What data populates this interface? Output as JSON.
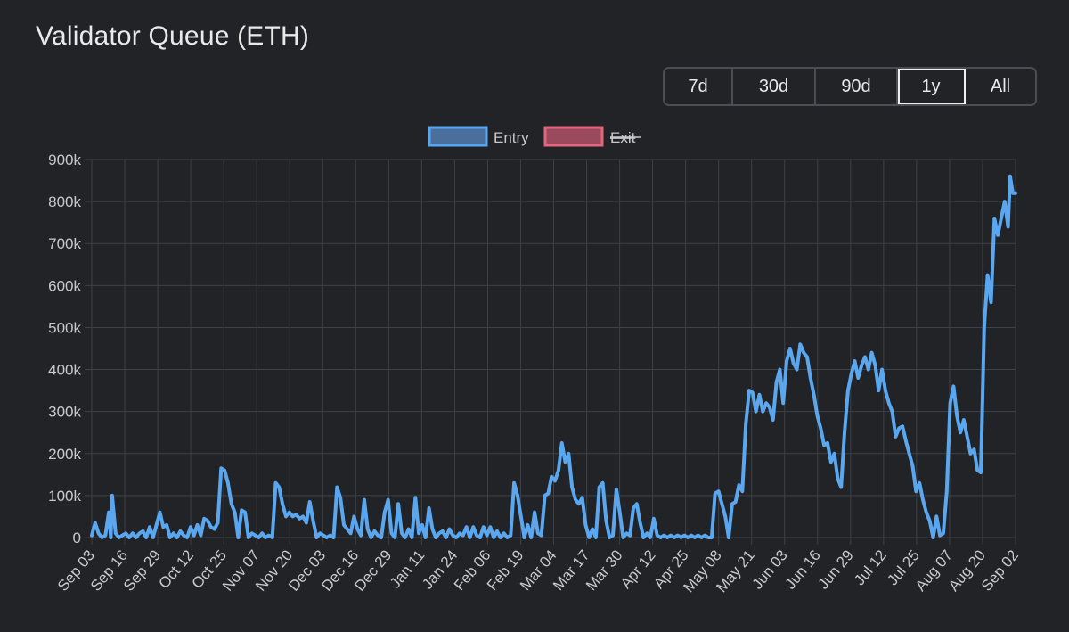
{
  "header": {
    "title": "Validator Queue (ETH)"
  },
  "range": {
    "options": [
      "7d",
      "30d",
      "90d",
      "1y",
      "All"
    ],
    "selected": "1y"
  },
  "colors": {
    "entry_line": "#5aa7ef",
    "entry_fill": "#4a6f9c",
    "exit_line": "#e2667e",
    "exit_fill": "#9a4a5c",
    "grid": "#3e4147"
  },
  "chart_data": {
    "type": "line",
    "title": "Validator Queue (ETH)",
    "xlabel": "",
    "ylabel": "",
    "ylim": [
      0,
      900000
    ],
    "y_ticks": [
      0,
      100000,
      200000,
      300000,
      400000,
      500000,
      600000,
      700000,
      800000,
      900000
    ],
    "y_tick_labels": [
      "0",
      "100k",
      "200k",
      "300k",
      "400k",
      "500k",
      "600k",
      "700k",
      "800k",
      "900k"
    ],
    "categories": [
      "Sep 03",
      "Sep 16",
      "Sep 29",
      "Oct 12",
      "Oct 25",
      "Nov 07",
      "Nov 20",
      "Dec 03",
      "Dec 16",
      "Dec 29",
      "Jan 11",
      "Jan 24",
      "Feb 06",
      "Feb 19",
      "Mar 04",
      "Mar 17",
      "Mar 30",
      "Apr 12",
      "Apr 25",
      "May 08",
      "May 21",
      "Jun 03",
      "Jun 16",
      "Jun 29",
      "Jul 12",
      "Jul 25",
      "Aug 07",
      "Aug 20",
      "Sep 02"
    ],
    "legend": [
      {
        "name": "Entry",
        "hidden": false
      },
      {
        "name": "Exit",
        "hidden": true
      }
    ],
    "series": [
      {
        "name": "Entry",
        "points": [
          [
            0,
            5000
          ],
          [
            0.5,
            35000
          ],
          [
            1,
            10000
          ],
          [
            1.5,
            0
          ],
          [
            2,
            5000
          ],
          [
            2.5,
            60000
          ],
          [
            2.8,
            0
          ],
          [
            3,
            100000
          ],
          [
            3.5,
            10000
          ],
          [
            4,
            0
          ],
          [
            4.5,
            5000
          ],
          [
            5,
            10000
          ],
          [
            5.5,
            0
          ],
          [
            6,
            10000
          ],
          [
            6.5,
            0
          ],
          [
            7,
            10000
          ],
          [
            7.5,
            15000
          ],
          [
            8,
            0
          ],
          [
            8.5,
            25000
          ],
          [
            9,
            0
          ],
          [
            10,
            60000
          ],
          [
            10.5,
            25000
          ],
          [
            11,
            30000
          ],
          [
            11.5,
            0
          ],
          [
            12,
            10000
          ],
          [
            12.5,
            0
          ],
          [
            13,
            15000
          ],
          [
            13.5,
            5000
          ],
          [
            14,
            0
          ],
          [
            14.5,
            25000
          ],
          [
            15,
            5000
          ],
          [
            15.5,
            30000
          ],
          [
            16,
            5000
          ],
          [
            16.5,
            45000
          ],
          [
            17,
            40000
          ],
          [
            17.5,
            25000
          ],
          [
            18,
            20000
          ],
          [
            18.5,
            35000
          ],
          [
            19,
            165000
          ],
          [
            19.5,
            160000
          ],
          [
            20,
            130000
          ],
          [
            20.5,
            80000
          ],
          [
            21,
            60000
          ],
          [
            21.5,
            0
          ],
          [
            22,
            65000
          ],
          [
            22.5,
            60000
          ],
          [
            23,
            0
          ],
          [
            23.5,
            10000
          ],
          [
            24,
            5000
          ],
          [
            24.5,
            0
          ],
          [
            25,
            10000
          ],
          [
            25.5,
            0
          ],
          [
            26,
            5000
          ],
          [
            26.5,
            0
          ],
          [
            27,
            130000
          ],
          [
            27.5,
            120000
          ],
          [
            28,
            80000
          ],
          [
            28.5,
            50000
          ],
          [
            29,
            60000
          ],
          [
            29.5,
            50000
          ],
          [
            30,
            55000
          ],
          [
            30.5,
            45000
          ],
          [
            31,
            50000
          ],
          [
            31.5,
            35000
          ],
          [
            32,
            85000
          ],
          [
            32.5,
            40000
          ],
          [
            33,
            0
          ],
          [
            33.5,
            10000
          ],
          [
            34,
            5000
          ],
          [
            34.5,
            0
          ],
          [
            35,
            5000
          ],
          [
            35.5,
            0
          ],
          [
            36,
            120000
          ],
          [
            36.5,
            95000
          ],
          [
            37,
            30000
          ],
          [
            37.5,
            20000
          ],
          [
            38,
            10000
          ],
          [
            38.5,
            50000
          ],
          [
            39,
            20000
          ],
          [
            39.5,
            5000
          ],
          [
            40,
            90000
          ],
          [
            40.5,
            20000
          ],
          [
            41,
            0
          ],
          [
            41.5,
            15000
          ],
          [
            42,
            5000
          ],
          [
            42.5,
            0
          ],
          [
            43,
            60000
          ],
          [
            43.5,
            90000
          ],
          [
            44,
            10000
          ],
          [
            44.5,
            0
          ],
          [
            45,
            80000
          ],
          [
            45.5,
            10000
          ],
          [
            46,
            0
          ],
          [
            46.5,
            20000
          ],
          [
            47,
            0
          ],
          [
            47.5,
            95000
          ],
          [
            48,
            10000
          ],
          [
            48.5,
            30000
          ],
          [
            49,
            0
          ],
          [
            49.5,
            70000
          ],
          [
            50,
            20000
          ],
          [
            50.5,
            0
          ],
          [
            51,
            10000
          ],
          [
            51.5,
            15000
          ],
          [
            52,
            0
          ],
          [
            52.5,
            20000
          ],
          [
            53,
            5000
          ],
          [
            53.5,
            0
          ],
          [
            54,
            10000
          ],
          [
            54.5,
            5000
          ],
          [
            55,
            25000
          ],
          [
            55.5,
            0
          ],
          [
            56,
            25000
          ],
          [
            56.5,
            5000
          ],
          [
            57,
            0
          ],
          [
            57.5,
            25000
          ],
          [
            58,
            5000
          ],
          [
            58.5,
            25000
          ],
          [
            59,
            0
          ],
          [
            59.5,
            15000
          ],
          [
            60,
            0
          ],
          [
            60.5,
            10000
          ],
          [
            61,
            0
          ],
          [
            61.5,
            5000
          ],
          [
            62,
            130000
          ],
          [
            62.5,
            100000
          ],
          [
            63,
            50000
          ],
          [
            63.5,
            0
          ],
          [
            64,
            30000
          ],
          [
            64.5,
            0
          ],
          [
            65,
            60000
          ],
          [
            65.5,
            10000
          ],
          [
            66,
            5000
          ],
          [
            66.5,
            100000
          ],
          [
            67,
            105000
          ],
          [
            67.5,
            145000
          ],
          [
            68,
            135000
          ],
          [
            68.5,
            160000
          ],
          [
            69,
            225000
          ],
          [
            69.5,
            180000
          ],
          [
            70,
            200000
          ],
          [
            70.5,
            120000
          ],
          [
            71,
            90000
          ],
          [
            71.5,
            80000
          ],
          [
            72,
            95000
          ],
          [
            72.5,
            30000
          ],
          [
            73,
            0
          ],
          [
            73.5,
            20000
          ],
          [
            74,
            0
          ],
          [
            74.5,
            120000
          ],
          [
            75,
            130000
          ],
          [
            75.5,
            40000
          ],
          [
            76,
            0
          ],
          [
            76.5,
            5000
          ],
          [
            77,
            115000
          ],
          [
            77.5,
            60000
          ],
          [
            78,
            0
          ],
          [
            78.5,
            10000
          ],
          [
            79,
            5000
          ],
          [
            79.5,
            70000
          ],
          [
            80,
            80000
          ],
          [
            80.5,
            35000
          ],
          [
            81,
            0
          ],
          [
            81.5,
            10000
          ],
          [
            82,
            0
          ],
          [
            82.5,
            45000
          ],
          [
            83,
            5000
          ],
          [
            83.5,
            0
          ],
          [
            84,
            5000
          ],
          [
            84.5,
            0
          ],
          [
            85,
            5000
          ],
          [
            85.5,
            0
          ],
          [
            86,
            5000
          ],
          [
            86.5,
            0
          ],
          [
            87,
            5000
          ],
          [
            87.5,
            0
          ],
          [
            88,
            5000
          ],
          [
            88.5,
            0
          ],
          [
            89,
            5000
          ],
          [
            89.5,
            0
          ],
          [
            90,
            5000
          ],
          [
            90.5,
            0
          ],
          [
            91,
            0
          ],
          [
            91.5,
            105000
          ],
          [
            92,
            110000
          ],
          [
            92.5,
            80000
          ],
          [
            93,
            50000
          ],
          [
            93.5,
            0
          ],
          [
            94,
            80000
          ],
          [
            94.5,
            85000
          ],
          [
            95,
            125000
          ],
          [
            95.5,
            110000
          ],
          [
            96,
            270000
          ],
          [
            96.5,
            350000
          ],
          [
            97,
            345000
          ],
          [
            97.5,
            300000
          ],
          [
            98,
            340000
          ],
          [
            98.5,
            300000
          ],
          [
            99,
            320000
          ],
          [
            99.5,
            310000
          ],
          [
            100,
            280000
          ],
          [
            100.5,
            370000
          ],
          [
            101,
            400000
          ],
          [
            101.5,
            320000
          ],
          [
            102,
            420000
          ],
          [
            102.5,
            450000
          ],
          [
            103,
            415000
          ],
          [
            103.5,
            400000
          ],
          [
            104,
            460000
          ],
          [
            104.5,
            440000
          ],
          [
            105,
            430000
          ],
          [
            105.5,
            380000
          ],
          [
            106,
            340000
          ],
          [
            106.5,
            290000
          ],
          [
            107,
            260000
          ],
          [
            107.5,
            220000
          ],
          [
            108,
            225000
          ],
          [
            108.5,
            180000
          ],
          [
            109,
            200000
          ],
          [
            109.5,
            140000
          ],
          [
            110,
            120000
          ],
          [
            110.5,
            250000
          ],
          [
            111,
            350000
          ],
          [
            111.5,
            390000
          ],
          [
            112,
            420000
          ],
          [
            112.5,
            380000
          ],
          [
            113,
            410000
          ],
          [
            113.5,
            430000
          ],
          [
            114,
            400000
          ],
          [
            114.5,
            440000
          ],
          [
            115,
            410000
          ],
          [
            115.5,
            350000
          ],
          [
            116,
            400000
          ],
          [
            116.5,
            350000
          ],
          [
            117,
            320000
          ],
          [
            117.5,
            300000
          ],
          [
            118,
            240000
          ],
          [
            118.5,
            260000
          ],
          [
            119,
            265000
          ],
          [
            119.5,
            230000
          ],
          [
            120,
            200000
          ],
          [
            120.5,
            170000
          ],
          [
            121,
            110000
          ],
          [
            121.5,
            130000
          ],
          [
            122,
            90000
          ],
          [
            122.5,
            60000
          ],
          [
            123,
            40000
          ],
          [
            123.5,
            0
          ],
          [
            124,
            50000
          ],
          [
            124.5,
            5000
          ],
          [
            125,
            10000
          ],
          [
            125.5,
            110000
          ],
          [
            126,
            320000
          ],
          [
            126.5,
            360000
          ],
          [
            127,
            290000
          ],
          [
            127.5,
            250000
          ],
          [
            128,
            280000
          ],
          [
            128.5,
            240000
          ],
          [
            129,
            200000
          ],
          [
            129.5,
            210000
          ],
          [
            130,
            160000
          ],
          [
            130.5,
            155000
          ],
          [
            131,
            500000
          ],
          [
            131.5,
            625000
          ],
          [
            132,
            560000
          ],
          [
            132.5,
            760000
          ],
          [
            133,
            720000
          ],
          [
            133.5,
            760000
          ],
          [
            134,
            800000
          ],
          [
            134.5,
            740000
          ],
          [
            134.8,
            860000
          ],
          [
            135.2,
            820000
          ],
          [
            135.6,
            820000
          ]
        ]
      },
      {
        "name": "Exit",
        "points": []
      }
    ]
  }
}
